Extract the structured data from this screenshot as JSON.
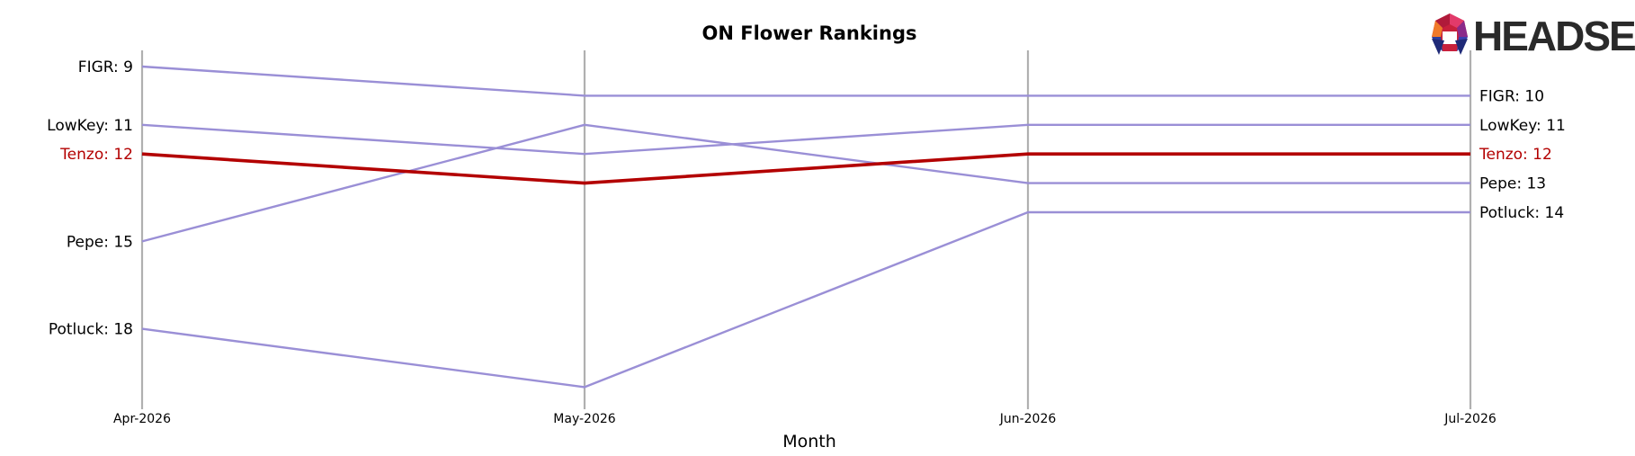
{
  "chart_data": {
    "type": "line",
    "title": "ON Flower Rankings",
    "xlabel": "Month",
    "ylabel": "",
    "x": [
      "Apr-2026",
      "May-2026",
      "Jun-2026",
      "Jul-2026"
    ],
    "y_inverted": true,
    "grid": "vertical month lines",
    "highlight_color": "#b30000",
    "series_color": "#9a8fd6",
    "series": [
      {
        "name": "FIGR",
        "values": [
          9,
          10,
          10,
          10
        ],
        "highlight": false
      },
      {
        "name": "LowKey",
        "values": [
          11,
          12,
          11,
          11
        ],
        "highlight": false
      },
      {
        "name": "Pepe",
        "values": [
          15,
          11,
          13,
          13
        ],
        "highlight": false
      },
      {
        "name": "Potluck",
        "values": [
          18,
          20,
          14,
          14
        ],
        "highlight": false
      },
      {
        "name": "Tenzo",
        "values": [
          12,
          13,
          12,
          12
        ],
        "highlight": true
      }
    ]
  },
  "logo": {
    "text": "HEADSET"
  }
}
